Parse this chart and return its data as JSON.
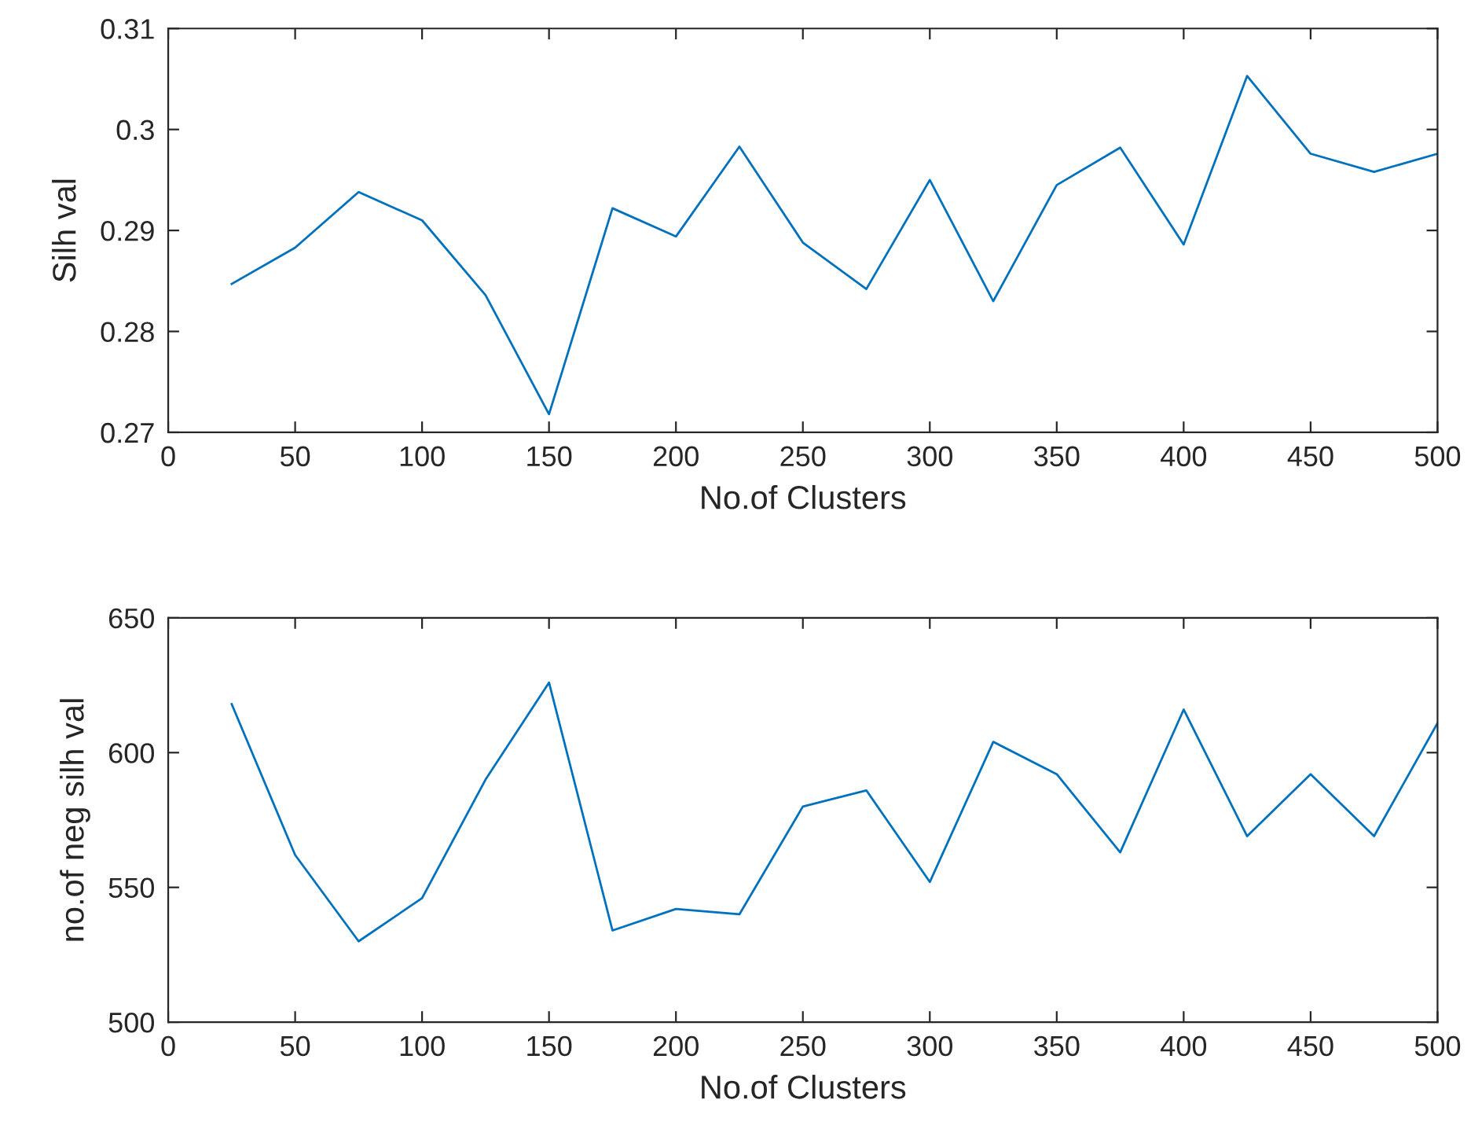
{
  "chart_data": [
    {
      "type": "line",
      "xlabel": "No.of Clusters",
      "ylabel": "Silh val",
      "x": [
        25,
        50,
        75,
        100,
        125,
        150,
        175,
        200,
        225,
        250,
        275,
        300,
        325,
        350,
        375,
        400,
        425,
        450,
        475,
        500
      ],
      "series": [
        {
          "color": "#0072bd",
          "values": [
            0.2847,
            0.2883,
            0.2938,
            0.291,
            0.2836,
            0.2718,
            0.2922,
            0.2894,
            0.2983,
            0.2888,
            0.2842,
            0.295,
            0.283,
            0.2945,
            0.2982,
            0.2886,
            0.3053,
            0.2976,
            0.2958,
            0.2976
          ]
        }
      ],
      "xlim": [
        0,
        500
      ],
      "xticks": [
        0,
        50,
        100,
        150,
        200,
        250,
        300,
        350,
        400,
        450,
        500
      ],
      "ylim": [
        0.27,
        0.31
      ],
      "yticks": [
        0.27,
        0.28,
        0.29,
        {
          "value": 0.3,
          "label": "0.3"
        },
        0.31
      ],
      "grid": false
    },
    {
      "type": "line",
      "xlabel": "No.of Clusters",
      "ylabel": "no.of neg silh val",
      "x": [
        25,
        50,
        75,
        100,
        125,
        150,
        175,
        200,
        225,
        250,
        275,
        300,
        325,
        350,
        375,
        400,
        425,
        450,
        475,
        500
      ],
      "series": [
        {
          "color": "#0072bd",
          "values": [
            618,
            562,
            530,
            546,
            590,
            626,
            534,
            542,
            540,
            580,
            586,
            552,
            604,
            592,
            563,
            616,
            569,
            592,
            569,
            611
          ]
        }
      ],
      "xlim": [
        0,
        500
      ],
      "xticks": [
        0,
        50,
        100,
        150,
        200,
        250,
        300,
        350,
        400,
        450,
        500
      ],
      "ylim": [
        500,
        650
      ],
      "yticks": [
        500,
        550,
        600,
        650
      ],
      "grid": false
    }
  ]
}
